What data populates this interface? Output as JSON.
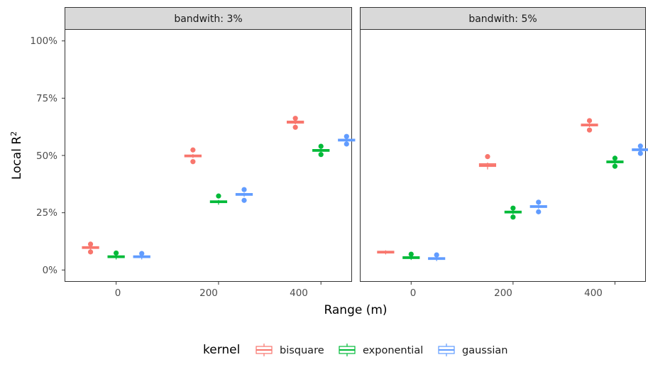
{
  "chart_data": {
    "type": "boxplot",
    "xlabel": "Range (m)",
    "ylabel": "Local R",
    "ylabel_superscript": "2",
    "xlim": [
      -100,
      460
    ],
    "ylim": [
      -5,
      105
    ],
    "x_ticks": [
      0,
      200,
      400
    ],
    "x_tick_labels": [
      "0",
      "200",
      "400"
    ],
    "y_ticks": [
      0,
      25,
      50,
      75,
      100
    ],
    "y_tick_labels": [
      "0%",
      "25%",
      "50%",
      "75%",
      "100%"
    ],
    "grid": false,
    "legend": {
      "position": "bottom",
      "title": "kernel",
      "entries": [
        {
          "name": "bisquare",
          "color": "#F8766D"
        },
        {
          "name": "exponential",
          "color": "#00BA38"
        },
        {
          "name": "gaussian",
          "color": "#619CFF"
        }
      ]
    },
    "panels": [
      {
        "strip": "bandwith: 3%",
        "series": [
          {
            "name": "bisquare",
            "color": "#F8766D",
            "boxes": [
              {
                "x": -50,
                "min": 8.9,
                "q1": 9.4,
                "median": 9.8,
                "q3": 10.2,
                "max": 10.6,
                "outliers": [
                  11.3,
                  7.9
                ]
              },
              {
                "x": 150,
                "min": 48.9,
                "q1": 49.4,
                "median": 49.8,
                "q3": 50.2,
                "max": 50.6,
                "outliers": [
                  52.4,
                  47.3
                ]
              },
              {
                "x": 350,
                "min": 63.6,
                "q1": 64.1,
                "median": 64.6,
                "q3": 65.0,
                "max": 65.4,
                "outliers": [
                  66.2,
                  62.3
                ]
              }
            ]
          },
          {
            "name": "exponential",
            "color": "#00BA38",
            "boxes": [
              {
                "x": 0,
                "min": 4.6,
                "q1": 5.4,
                "median": 5.8,
                "q3": 6.2,
                "max": 6.6,
                "outliers": [
                  7.4
                ]
              },
              {
                "x": 200,
                "min": 28.5,
                "q1": 29.4,
                "median": 29.8,
                "q3": 30.2,
                "max": 30.6,
                "outliers": [
                  32.3
                ]
              },
              {
                "x": 400,
                "min": 51.3,
                "q1": 51.8,
                "median": 52.2,
                "q3": 52.6,
                "max": 53.0,
                "outliers": [
                  54.0,
                  50.4
                ]
              }
            ]
          },
          {
            "name": "gaussian",
            "color": "#619CFF",
            "boxes": [
              {
                "x": 50,
                "min": 4.6,
                "q1": 5.4,
                "median": 5.8,
                "q3": 6.2,
                "max": 6.6,
                "outliers": [
                  7.2
                ]
              },
              {
                "x": 250,
                "min": 32.0,
                "q1": 32.6,
                "median": 33.0,
                "q3": 33.4,
                "max": 33.8,
                "outliers": [
                  35.1,
                  30.4
                ]
              },
              {
                "x": 450,
                "min": 55.8,
                "q1": 56.3,
                "median": 56.7,
                "q3": 57.1,
                "max": 57.5,
                "outliers": [
                  58.3,
                  55.0
                ]
              }
            ]
          }
        ]
      },
      {
        "strip": "bandwith: 5%",
        "series": [
          {
            "name": "bisquare",
            "color": "#F8766D",
            "boxes": [
              {
                "x": -50,
                "min": 6.8,
                "q1": 7.4,
                "median": 7.8,
                "q3": 8.2,
                "max": 8.6,
                "outliers": []
              },
              {
                "x": 150,
                "min": 43.9,
                "q1": 45.2,
                "median": 45.8,
                "q3": 46.4,
                "max": 46.9,
                "outliers": [
                  49.5
                ]
              },
              {
                "x": 350,
                "min": 62.4,
                "q1": 62.9,
                "median": 63.3,
                "q3": 63.7,
                "max": 64.1,
                "outliers": [
                  65.2,
                  61.1
                ]
              }
            ]
          },
          {
            "name": "exponential",
            "color": "#00BA38",
            "boxes": [
              {
                "x": 0,
                "min": 4.4,
                "q1": 5.0,
                "median": 5.4,
                "q3": 5.8,
                "max": 6.2,
                "outliers": [
                  6.9
                ]
              },
              {
                "x": 200,
                "min": 24.3,
                "q1": 24.9,
                "median": 25.3,
                "q3": 25.7,
                "max": 26.1,
                "outliers": [
                  27.0,
                  23.1
                ]
              },
              {
                "x": 400,
                "min": 46.2,
                "q1": 46.8,
                "median": 47.2,
                "q3": 47.6,
                "max": 48.0,
                "outliers": [
                  48.8,
                  45.3
                ]
              }
            ]
          },
          {
            "name": "gaussian",
            "color": "#619CFF",
            "boxes": [
              {
                "x": 50,
                "min": 3.9,
                "q1": 4.6,
                "median": 5.0,
                "q3": 5.4,
                "max": 5.8,
                "outliers": [
                  6.6
                ]
              },
              {
                "x": 250,
                "min": 26.8,
                "q1": 27.3,
                "median": 27.7,
                "q3": 28.1,
                "max": 28.5,
                "outliers": [
                  29.6,
                  25.4
                ]
              },
              {
                "x": 450,
                "min": 51.6,
                "q1": 52.1,
                "median": 52.5,
                "q3": 52.9,
                "max": 53.3,
                "outliers": [
                  54.1,
                  50.9
                ]
              }
            ]
          }
        ]
      }
    ]
  }
}
